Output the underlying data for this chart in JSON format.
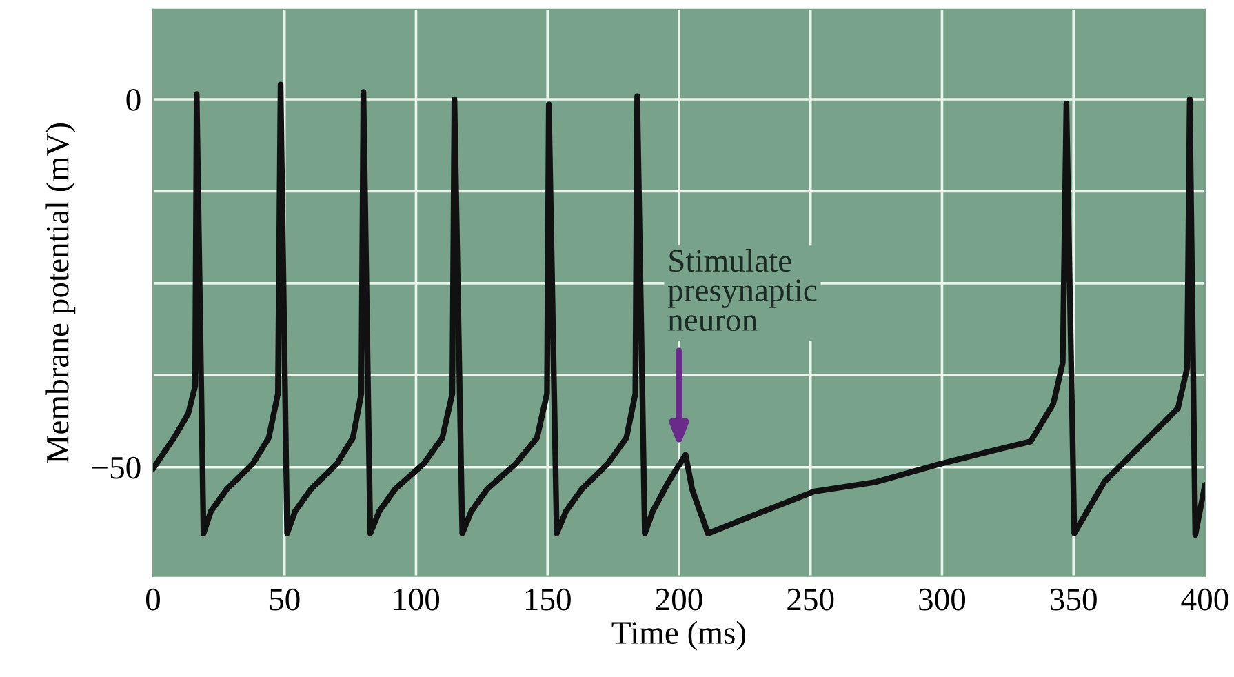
{
  "chart_data": {
    "type": "line",
    "xlabel": "Time (ms)",
    "ylabel": "Membrane potential (mV)",
    "xlim": [
      0,
      400
    ],
    "ylim": [
      -64.8,
      12.2
    ],
    "xticks": [
      0,
      50,
      100,
      150,
      200,
      250,
      300,
      350,
      400
    ],
    "yticks": [
      {
        "value": -50,
        "label": "−50"
      },
      {
        "value": -37.5,
        "label": null
      },
      {
        "value": -25,
        "label": null
      },
      {
        "value": -12.5,
        "label": null
      },
      0
    ],
    "grid": true,
    "line_style": "solid",
    "marker": "none",
    "series": [
      {
        "color": "#111111",
        "x": [
          0,
          8,
          13.4,
          16,
          16.6,
          19.2,
          22,
          28,
          38,
          44,
          47.5,
          48.5,
          51,
          54,
          60,
          70,
          76,
          79.2,
          80,
          82.6,
          86,
          92,
          103,
          110,
          113.8,
          114.6,
          117.6,
          121,
          127,
          138,
          146,
          149.8,
          150.5,
          153.5,
          157,
          163,
          173,
          180,
          183.4,
          184.1,
          187,
          190,
          196,
          202.5,
          205,
          211,
          225,
          251.4,
          275,
          298.7,
          323.2,
          333.7,
          342.3,
          345.9,
          347.3,
          350.3,
          361.7,
          377.4,
          389.7,
          393.2,
          394.2,
          396.3,
          400
        ],
        "values": [
          -50.2,
          -46,
          -42.7,
          -39,
          0.7,
          -59,
          -56,
          -53,
          -49.5,
          -46,
          -40,
          2,
          -59,
          -56,
          -53,
          -49.5,
          -46,
          -40,
          1,
          -59,
          -56,
          -53,
          -49.5,
          -46,
          -40,
          0,
          -59,
          -56,
          -53,
          -49.5,
          -46,
          -40,
          -0.7,
          -59,
          -56,
          -53,
          -49.5,
          -46,
          -40,
          0.4,
          -59,
          -56,
          -52,
          -48.3,
          -53,
          -59,
          -57,
          -53.3,
          -52,
          -49.6,
          -47.4,
          -46.5,
          -41.4,
          -35.8,
          -0.6,
          -59,
          -52,
          -46.4,
          -42,
          -36.5,
          0,
          -59.2,
          -52.4
        ]
      }
    ],
    "annotations": [
      "Stimulate\npresynaptic\nneuron"
    ]
  }
}
